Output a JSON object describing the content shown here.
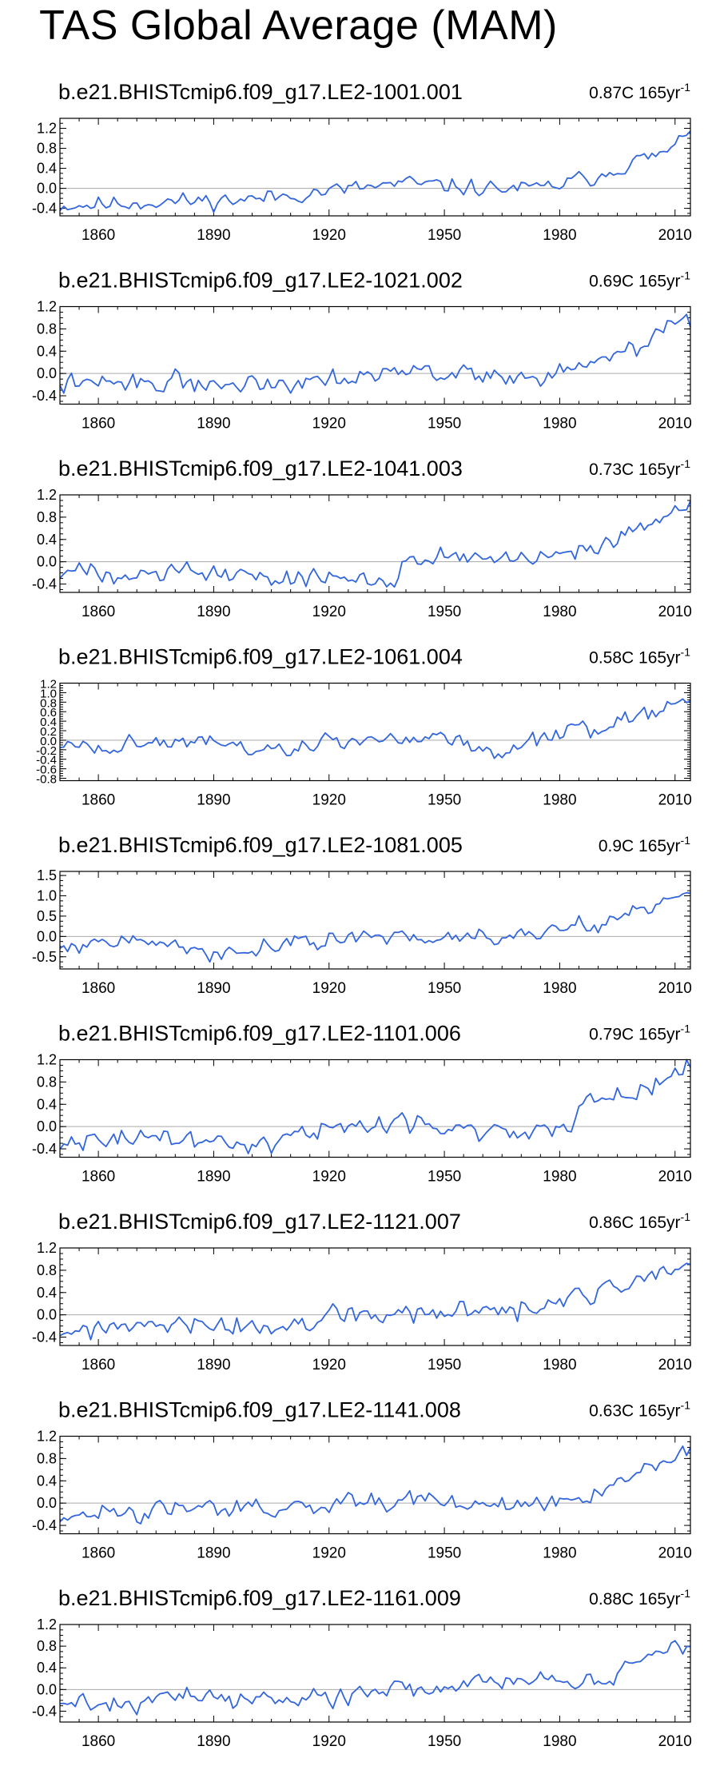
{
  "title": "TAS Global Average (MAM)",
  "colors": {
    "line": "#3366dd",
    "zero_line": "#aaaaaa",
    "frame": "#000000"
  },
  "chart_data": [
    {
      "type": "line",
      "title": "b.e21.BHISTcmip6.f09_g17.LE2-1001.001",
      "trend": {
        "value": "0.87C",
        "per": "165yr",
        "exp": "-1"
      },
      "xlim": [
        1850,
        2014
      ],
      "ylim": [
        -0.55,
        1.4
      ],
      "xticks": [
        1860,
        1890,
        1920,
        1950,
        1980,
        2010
      ],
      "yticks": [
        -0.4,
        0.0,
        0.4,
        0.8,
        1.2
      ],
      "ytick_labels": [
        "-0.4",
        "0.0",
        "0.4",
        "0.8",
        "1.2"
      ],
      "anchors": [
        [
          1850,
          -0.35
        ],
        [
          1880,
          -0.26
        ],
        [
          1900,
          -0.22
        ],
        [
          1920,
          -0.05
        ],
        [
          1940,
          0.1
        ],
        [
          1960,
          0.0
        ],
        [
          1975,
          0.0
        ],
        [
          1990,
          0.25
        ],
        [
          2000,
          0.55
        ],
        [
          2005,
          0.65
        ],
        [
          2010,
          0.8
        ],
        [
          2014,
          1.25
        ]
      ],
      "noise": 0.12,
      "seed": 11
    },
    {
      "type": "line",
      "title": "b.e21.BHISTcmip6.f09_g17.LE2-1021.002",
      "trend": {
        "value": "0.69C",
        "per": "165yr",
        "exp": "-1"
      },
      "xlim": [
        1850,
        2014
      ],
      "ylim": [
        -0.55,
        1.2
      ],
      "xticks": [
        1860,
        1890,
        1920,
        1950,
        1980,
        2010
      ],
      "yticks": [
        -0.4,
        0.0,
        0.4,
        0.8,
        1.2
      ],
      "ytick_labels": [
        "-0.4",
        "0.0",
        "0.4",
        "0.8",
        "1.2"
      ],
      "anchors": [
        [
          1850,
          -0.2
        ],
        [
          1880,
          -0.15
        ],
        [
          1900,
          -0.2
        ],
        [
          1920,
          -0.05
        ],
        [
          1940,
          0.05
        ],
        [
          1960,
          -0.05
        ],
        [
          1975,
          -0.05
        ],
        [
          1990,
          0.2
        ],
        [
          2000,
          0.45
        ],
        [
          2007,
          0.8
        ],
        [
          2014,
          0.95
        ]
      ],
      "noise": 0.13,
      "seed": 22
    },
    {
      "type": "line",
      "title": "b.e21.BHISTcmip6.f09_g17.LE2-1041.003",
      "trend": {
        "value": "0.73C",
        "per": "165yr",
        "exp": "-1"
      },
      "xlim": [
        1850,
        2014
      ],
      "ylim": [
        -0.55,
        1.2
      ],
      "xticks": [
        1860,
        1890,
        1920,
        1950,
        1980,
        2010
      ],
      "yticks": [
        -0.4,
        0.0,
        0.4,
        0.8,
        1.2
      ],
      "ytick_labels": [
        "-0.4",
        "0.0",
        "0.4",
        "0.8",
        "1.2"
      ],
      "anchors": [
        [
          1850,
          -0.2
        ],
        [
          1880,
          -0.15
        ],
        [
          1910,
          -0.3
        ],
        [
          1937,
          -0.3
        ],
        [
          1940,
          0.1
        ],
        [
          1960,
          0.05
        ],
        [
          1975,
          0.05
        ],
        [
          1990,
          0.2
        ],
        [
          2000,
          0.5
        ],
        [
          2007,
          0.8
        ],
        [
          2014,
          1.0
        ]
      ],
      "noise": 0.13,
      "seed": 33
    },
    {
      "type": "line",
      "title": "b.e21.BHISTcmip6.f09_g17.LE2-1061.004",
      "trend": {
        "value": "0.58C",
        "per": "165yr",
        "exp": "-1"
      },
      "xlim": [
        1850,
        2014
      ],
      "ylim": [
        -0.85,
        1.2
      ],
      "xticks": [
        1860,
        1890,
        1920,
        1950,
        1980,
        2010
      ],
      "yticks": [
        -0.8,
        -0.6,
        -0.4,
        -0.2,
        0.0,
        0.2,
        0.4,
        0.6,
        0.8,
        1.0,
        1.2
      ],
      "ytick_labels": [
        "-0.8",
        "-0.6",
        "-0.4",
        "-0.2",
        "0.0",
        "0.2",
        "0.4",
        "0.6",
        "0.8",
        "1.0",
        "1.2"
      ],
      "anchors": [
        [
          1850,
          -0.15
        ],
        [
          1880,
          -0.05
        ],
        [
          1905,
          -0.2
        ],
        [
          1930,
          0.0
        ],
        [
          1950,
          0.1
        ],
        [
          1958,
          -0.1
        ],
        [
          1965,
          -0.3
        ],
        [
          1975,
          0.0
        ],
        [
          1990,
          0.25
        ],
        [
          2000,
          0.5
        ],
        [
          2014,
          0.8
        ]
      ],
      "noise": 0.14,
      "seed": 44
    },
    {
      "type": "line",
      "title": "b.e21.BHISTcmip6.f09_g17.LE2-1081.005",
      "trend": {
        "value": "0.9C",
        "per": "165yr",
        "exp": "-1"
      },
      "xlim": [
        1850,
        2014
      ],
      "ylim": [
        -0.8,
        1.6
      ],
      "xticks": [
        1860,
        1890,
        1920,
        1950,
        1980,
        2010
      ],
      "yticks": [
        -0.5,
        0.0,
        0.5,
        1.0,
        1.5
      ],
      "ytick_labels": [
        "-0.5",
        "0.0",
        "0.5",
        "1.0",
        "1.5"
      ],
      "anchors": [
        [
          1850,
          -0.2
        ],
        [
          1880,
          -0.1
        ],
        [
          1890,
          -0.45
        ],
        [
          1910,
          -0.2
        ],
        [
          1930,
          -0.05
        ],
        [
          1960,
          0.0
        ],
        [
          1975,
          0.1
        ],
        [
          1990,
          0.35
        ],
        [
          2000,
          0.7
        ],
        [
          2014,
          1.1
        ]
      ],
      "noise": 0.15,
      "seed": 55
    },
    {
      "type": "line",
      "title": "b.e21.BHISTcmip6.f09_g17.LE2-1101.006",
      "trend": {
        "value": "0.79C",
        "per": "165yr",
        "exp": "-1"
      },
      "xlim": [
        1850,
        2014
      ],
      "ylim": [
        -0.55,
        1.2
      ],
      "xticks": [
        1860,
        1890,
        1920,
        1950,
        1980,
        2010
      ],
      "yticks": [
        -0.4,
        0.0,
        0.4,
        0.8,
        1.2
      ],
      "ytick_labels": [
        "-0.4",
        "0.0",
        "0.4",
        "0.8",
        "1.2"
      ],
      "anchors": [
        [
          1850,
          -0.25
        ],
        [
          1880,
          -0.2
        ],
        [
          1897,
          -0.35
        ],
        [
          1920,
          0.0
        ],
        [
          1945,
          0.1
        ],
        [
          1960,
          -0.1
        ],
        [
          1983,
          -0.05
        ],
        [
          1987,
          0.45
        ],
        [
          1995,
          0.5
        ],
        [
          2005,
          0.8
        ],
        [
          2014,
          1.1
        ]
      ],
      "noise": 0.13,
      "seed": 66
    },
    {
      "type": "line",
      "title": "b.e21.BHISTcmip6.f09_g17.LE2-1121.007",
      "trend": {
        "value": "0.86C",
        "per": "165yr",
        "exp": "-1"
      },
      "xlim": [
        1850,
        2014
      ],
      "ylim": [
        -0.55,
        1.2
      ],
      "xticks": [
        1860,
        1890,
        1920,
        1950,
        1980,
        2010
      ],
      "yticks": [
        -0.4,
        0.0,
        0.4,
        0.8,
        1.2
      ],
      "ytick_labels": [
        "-0.4",
        "0.0",
        "0.4",
        "0.8",
        "1.2"
      ],
      "anchors": [
        [
          1850,
          -0.3
        ],
        [
          1880,
          -0.2
        ],
        [
          1905,
          -0.25
        ],
        [
          1925,
          0.0
        ],
        [
          1940,
          0.0
        ],
        [
          1960,
          0.05
        ],
        [
          1975,
          0.1
        ],
        [
          1985,
          0.35
        ],
        [
          2000,
          0.55
        ],
        [
          2014,
          0.9
        ]
      ],
      "noise": 0.14,
      "seed": 77
    },
    {
      "type": "line",
      "title": "b.e21.BHISTcmip6.f09_g17.LE2-1141.008",
      "trend": {
        "value": "0.63C",
        "per": "165yr",
        "exp": "-1"
      },
      "xlim": [
        1850,
        2014
      ],
      "ylim": [
        -0.55,
        1.2
      ],
      "xticks": [
        1860,
        1890,
        1920,
        1950,
        1980,
        2010
      ],
      "yticks": [
        -0.4,
        0.0,
        0.4,
        0.8,
        1.2
      ],
      "ytick_labels": [
        "-0.4",
        "0.0",
        "0.4",
        "0.8",
        "1.2"
      ],
      "anchors": [
        [
          1850,
          -0.2
        ],
        [
          1880,
          -0.1
        ],
        [
          1910,
          -0.1
        ],
        [
          1940,
          0.0
        ],
        [
          1960,
          0.0
        ],
        [
          1975,
          -0.05
        ],
        [
          1990,
          0.15
        ],
        [
          2000,
          0.5
        ],
        [
          2014,
          0.95
        ]
      ],
      "noise": 0.12,
      "seed": 88
    },
    {
      "type": "line",
      "title": "b.e21.BHISTcmip6.f09_g17.LE2-1161.009",
      "trend": {
        "value": "0.88C",
        "per": "165yr",
        "exp": "-1"
      },
      "xlim": [
        1850,
        2014
      ],
      "ylim": [
        -0.6,
        1.2
      ],
      "xticks": [
        1860,
        1890,
        1920,
        1950,
        1980,
        2010
      ],
      "yticks": [
        -0.4,
        0.0,
        0.4,
        0.8,
        1.2
      ],
      "ytick_labels": [
        "-0.4",
        "0.0",
        "0.4",
        "0.8",
        "1.2"
      ],
      "anchors": [
        [
          1850,
          -0.2
        ],
        [
          1865,
          -0.35
        ],
        [
          1880,
          -0.1
        ],
        [
          1910,
          -0.2
        ],
        [
          1930,
          0.0
        ],
        [
          1950,
          0.1
        ],
        [
          1975,
          0.2
        ],
        [
          1992,
          0.1
        ],
        [
          2000,
          0.55
        ],
        [
          2010,
          0.8
        ],
        [
          2014,
          0.75
        ]
      ],
      "noise": 0.13,
      "seed": 99
    }
  ]
}
